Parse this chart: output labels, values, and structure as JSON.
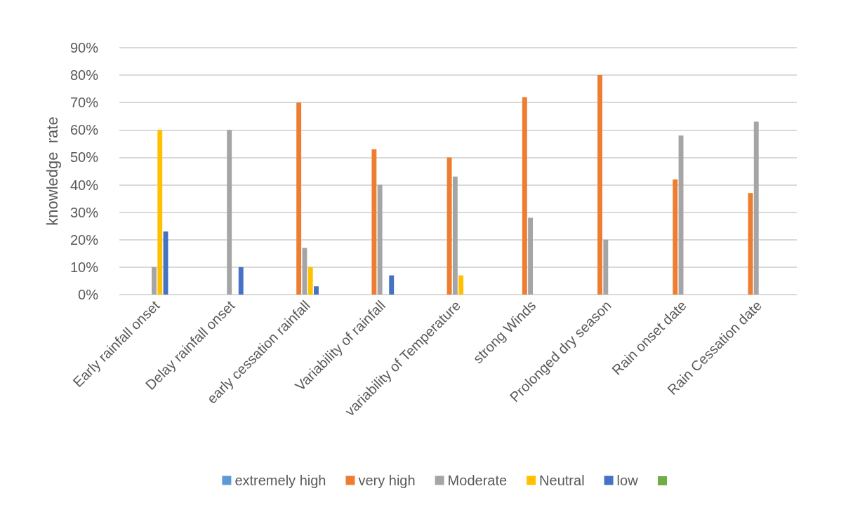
{
  "chart_data": {
    "type": "bar",
    "ylabel": "knowledge  rate",
    "categories": [
      "Early rainfall onset",
      "Delay rainfall onset",
      "early cessation rainfall",
      "Variability of rainfall",
      "variability of Temperature",
      "strong Winds",
      "Prolonged dry season",
      "Rain onset date",
      "Rain Cessation date"
    ],
    "series": [
      {
        "name": "extremely high",
        "color": "#5b9bd5",
        "values": [
          null,
          null,
          null,
          null,
          null,
          null,
          null,
          null,
          null
        ]
      },
      {
        "name": "very high",
        "color": "#ed7d31",
        "values": [
          null,
          null,
          70,
          53,
          50,
          72,
          80,
          42,
          37
        ]
      },
      {
        "name": "Moderate",
        "color": "#a5a5a5",
        "values": [
          10,
          60,
          17,
          40,
          43,
          28,
          20,
          58,
          63
        ]
      },
      {
        "name": "Neutral",
        "color": "#ffc000",
        "values": [
          60,
          null,
          10,
          null,
          7,
          null,
          null,
          null,
          null
        ]
      },
      {
        "name": "low",
        "color": "#4472c4",
        "values": [
          23,
          10,
          3,
          7,
          null,
          null,
          null,
          null,
          null
        ]
      },
      {
        "color": "#70ad47",
        "values": [
          null,
          null,
          null,
          null,
          null,
          null,
          null,
          null,
          null
        ]
      }
    ],
    "ylim": [
      0,
      90
    ],
    "yticks": [
      {
        "value": 0,
        "label": "0%"
      },
      {
        "value": 10,
        "label": "10%"
      },
      {
        "value": 20,
        "label": "20%"
      },
      {
        "value": 30,
        "label": "30%"
      },
      {
        "value": 40,
        "label": "40%"
      },
      {
        "value": 50,
        "label": "50%"
      },
      {
        "value": 60,
        "label": "60%"
      },
      {
        "value": 70,
        "label": "70%"
      },
      {
        "value": 80,
        "label": "80%"
      },
      {
        "value": 90,
        "label": "90%"
      }
    ],
    "grid": "y",
    "legend": "bottom"
  }
}
